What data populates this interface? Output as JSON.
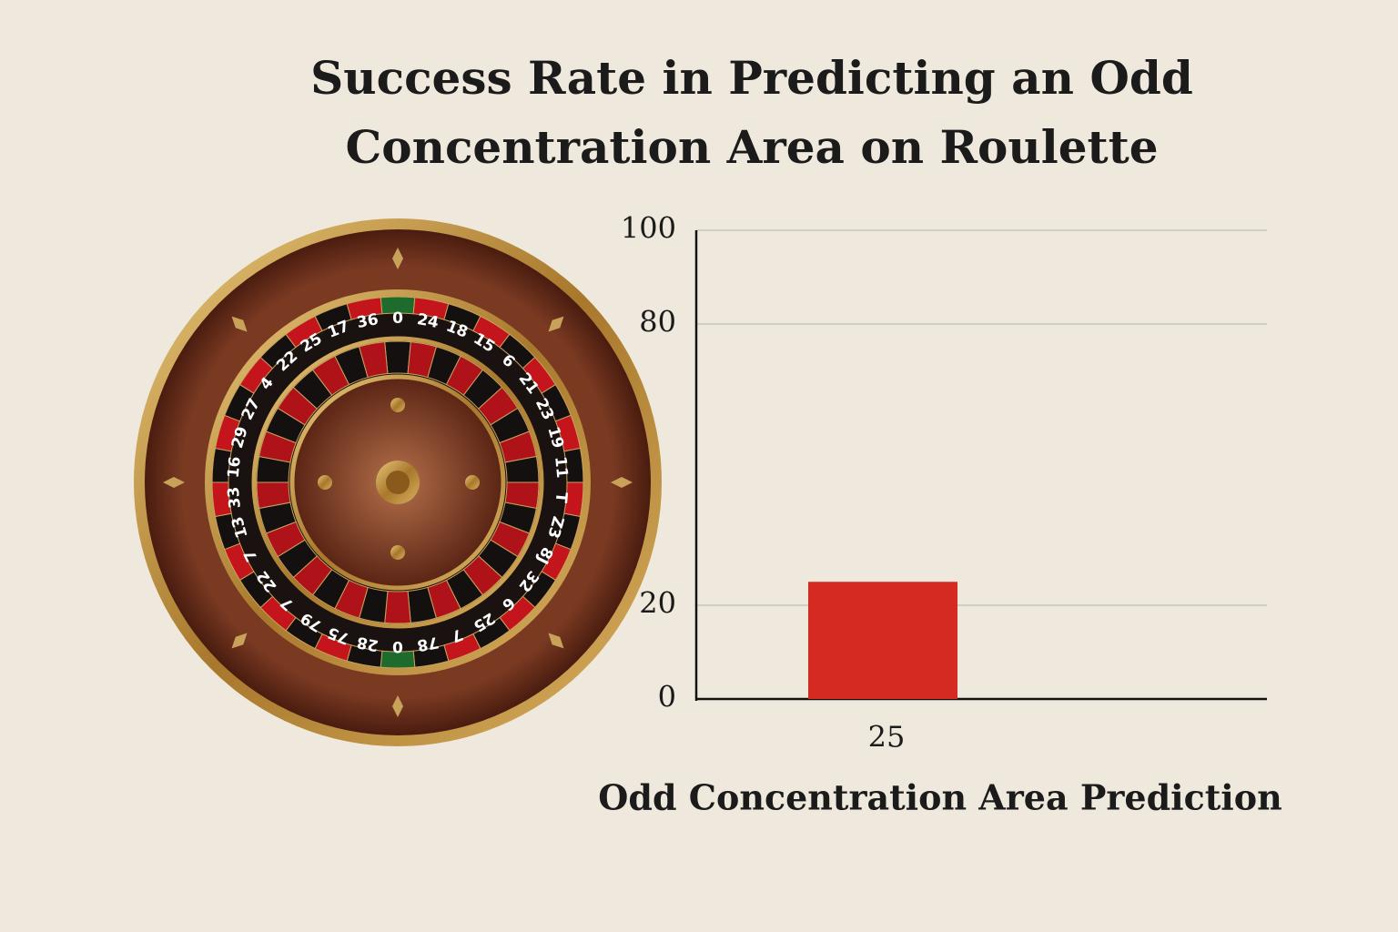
{
  "chart_data": {
    "type": "bar",
    "title": "Success Rate in Predicting an Odd Concentration Area on Roulette",
    "x_label": "Odd Concentration Area Prediction",
    "categories": [
      null
    ],
    "values": [
      25
    ],
    "color": "#d42a22",
    "ylim": [
      0,
      100
    ],
    "yticks": [
      0,
      20,
      80,
      100
    ],
    "grid": true
  },
  "wheel": {
    "numbers": [
      "0",
      "24",
      "18",
      "15",
      "6",
      "21",
      "23",
      "19",
      "11",
      "T",
      "Z3",
      "8J",
      "32",
      "6",
      "25",
      "7",
      "78",
      "0",
      "28",
      "75",
      "79",
      "7",
      "22",
      "7",
      "13",
      "33",
      "16",
      "29",
      "27",
      "4",
      "22",
      "25",
      "17",
      "36"
    ]
  }
}
